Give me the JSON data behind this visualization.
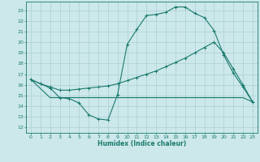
{
  "xlabel": "Humidex (Indice chaleur)",
  "xlim": [
    -0.5,
    23.5
  ],
  "ylim": [
    11.5,
    23.8
  ],
  "yticks": [
    12,
    13,
    14,
    15,
    16,
    17,
    18,
    19,
    20,
    21,
    22,
    23
  ],
  "xticks": [
    0,
    1,
    2,
    3,
    4,
    5,
    6,
    7,
    8,
    9,
    10,
    11,
    12,
    13,
    14,
    15,
    16,
    17,
    18,
    19,
    20,
    21,
    22,
    23
  ],
  "bg_color": "#cce8ea",
  "line_color": "#1a7a6e",
  "grid_color": "#aacfd4",
  "line1_x": [
    0,
    1,
    2,
    3,
    4,
    5,
    6,
    7,
    8,
    9,
    10,
    11,
    12,
    13,
    14,
    15,
    16,
    17,
    18,
    19,
    20,
    21,
    22,
    23
  ],
  "line1_y": [
    16.5,
    16.1,
    15.7,
    14.8,
    14.7,
    14.3,
    13.2,
    12.8,
    12.7,
    15.1,
    19.8,
    21.2,
    22.5,
    22.6,
    22.8,
    23.3,
    23.3,
    22.7,
    22.3,
    21.1,
    18.8,
    17.1,
    15.8,
    14.4
  ],
  "line2_x": [
    0,
    2,
    3,
    4,
    5,
    6,
    9,
    10,
    11,
    12,
    13,
    14,
    15,
    16,
    17,
    18,
    19,
    20,
    21,
    22,
    23
  ],
  "line2_y": [
    16.5,
    14.8,
    14.8,
    14.8,
    14.8,
    14.8,
    14.8,
    14.8,
    14.8,
    14.8,
    14.8,
    14.8,
    14.8,
    14.8,
    14.8,
    14.8,
    14.8,
    14.8,
    14.8,
    14.8,
    14.4
  ],
  "line3_x": [
    0,
    1,
    2,
    3,
    4,
    5,
    6,
    7,
    8,
    9,
    10,
    11,
    12,
    13,
    14,
    15,
    16,
    17,
    18,
    19,
    20,
    21,
    22,
    23
  ],
  "line3_y": [
    16.5,
    16.1,
    15.8,
    15.5,
    15.5,
    15.6,
    15.7,
    15.8,
    15.9,
    16.1,
    16.4,
    16.7,
    17.0,
    17.3,
    17.7,
    18.1,
    18.5,
    19.0,
    19.5,
    20.0,
    19.0,
    17.5,
    16.0,
    14.4
  ]
}
